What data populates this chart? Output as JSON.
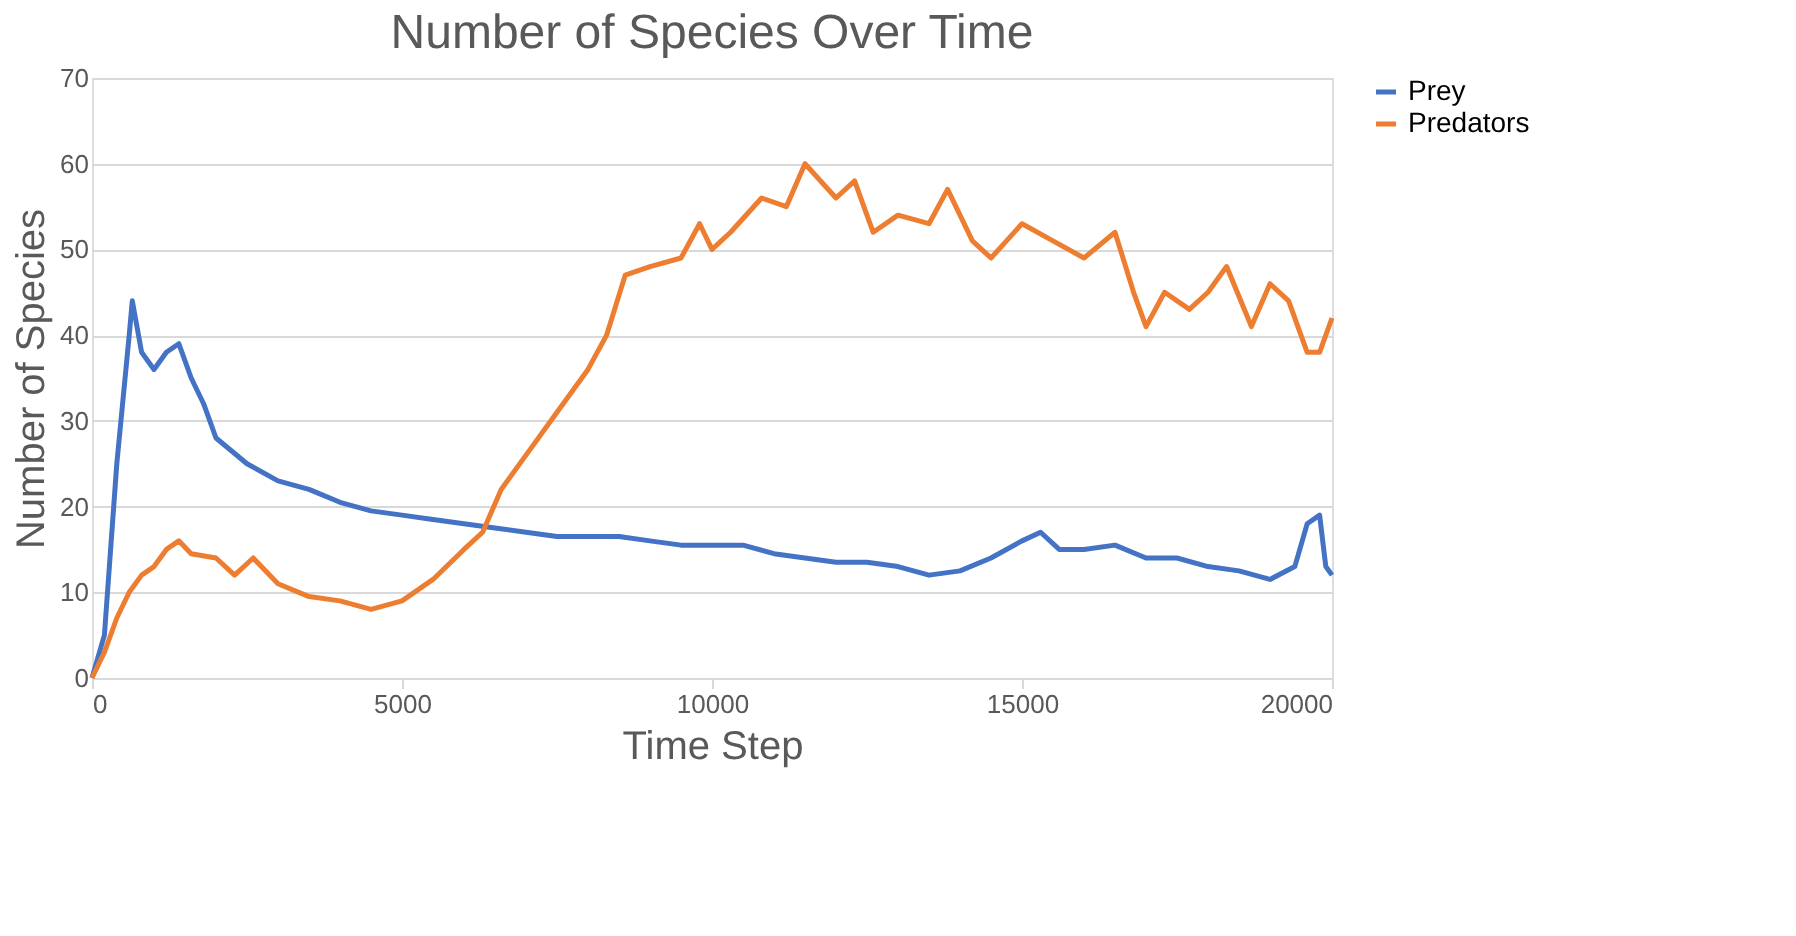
{
  "chart_data": {
    "type": "line",
    "title": "Number of Species Over Time",
    "xlabel": "Time Step",
    "ylabel": "Number of Species",
    "xlim": [
      0,
      20000
    ],
    "xticks": [
      0,
      5000,
      10000,
      15000,
      20000
    ],
    "ylim": [
      0,
      70
    ],
    "yticks": [
      0,
      10,
      20,
      30,
      40,
      50,
      60,
      70
    ],
    "grid": "y",
    "legend": "right",
    "marker": "none",
    "line_style": "solid",
    "series": [
      {
        "name": "Prey",
        "color": "#4472c4",
        "x": [
          0,
          200,
          400,
          600,
          650,
          800,
          1000,
          1200,
          1400,
          1600,
          1800,
          2000,
          2500,
          3000,
          3500,
          4000,
          4500,
          5000,
          5500,
          6000,
          6500,
          7000,
          7500,
          8000,
          8500,
          9000,
          9500,
          10000,
          10500,
          11000,
          11500,
          12000,
          12500,
          13000,
          13500,
          14000,
          14500,
          15000,
          15300,
          15600,
          16000,
          16500,
          17000,
          17500,
          18000,
          18500,
          19000,
          19400,
          19600,
          19800,
          19900,
          20000
        ],
        "values": [
          0,
          5,
          25,
          40,
          44,
          38,
          36,
          38,
          39,
          35,
          32,
          28,
          25,
          23,
          22,
          20.5,
          19.5,
          19,
          18.5,
          18,
          17.5,
          17,
          16.5,
          16.5,
          16.5,
          16,
          15.5,
          15.5,
          15.5,
          14.5,
          14,
          13.5,
          13.5,
          13,
          12,
          12.5,
          14,
          16,
          17,
          15,
          15,
          15.5,
          14,
          14,
          13,
          12.5,
          11.5,
          13,
          18,
          19,
          13,
          12
        ]
      },
      {
        "name": "Predators",
        "color": "#ed7d31",
        "x": [
          0,
          200,
          400,
          600,
          800,
          1000,
          1200,
          1400,
          1600,
          2000,
          2300,
          2600,
          3000,
          3500,
          4000,
          4500,
          5000,
          5500,
          6000,
          6300,
          6600,
          7000,
          7500,
          8000,
          8300,
          8600,
          9000,
          9500,
          9800,
          10000,
          10300,
          10800,
          11200,
          11500,
          12000,
          12300,
          12600,
          13000,
          13500,
          13800,
          14200,
          14500,
          15000,
          15500,
          16000,
          16500,
          16800,
          17000,
          17300,
          17700,
          18000,
          18300,
          18700,
          19000,
          19300,
          19600,
          19800,
          20000
        ],
        "values": [
          0,
          3,
          7,
          10,
          12,
          13,
          15,
          16,
          14.5,
          14,
          12,
          14,
          11,
          9.5,
          9,
          8,
          9,
          11.5,
          15,
          17,
          22,
          26,
          31,
          36,
          40,
          47,
          48,
          49,
          53,
          50,
          52,
          56,
          55,
          60,
          56,
          58,
          52,
          54,
          53,
          57,
          51,
          49,
          53,
          51,
          49,
          52,
          45,
          41,
          45,
          43,
          45,
          48,
          41,
          46,
          44,
          38,
          38,
          42
        ]
      }
    ]
  }
}
